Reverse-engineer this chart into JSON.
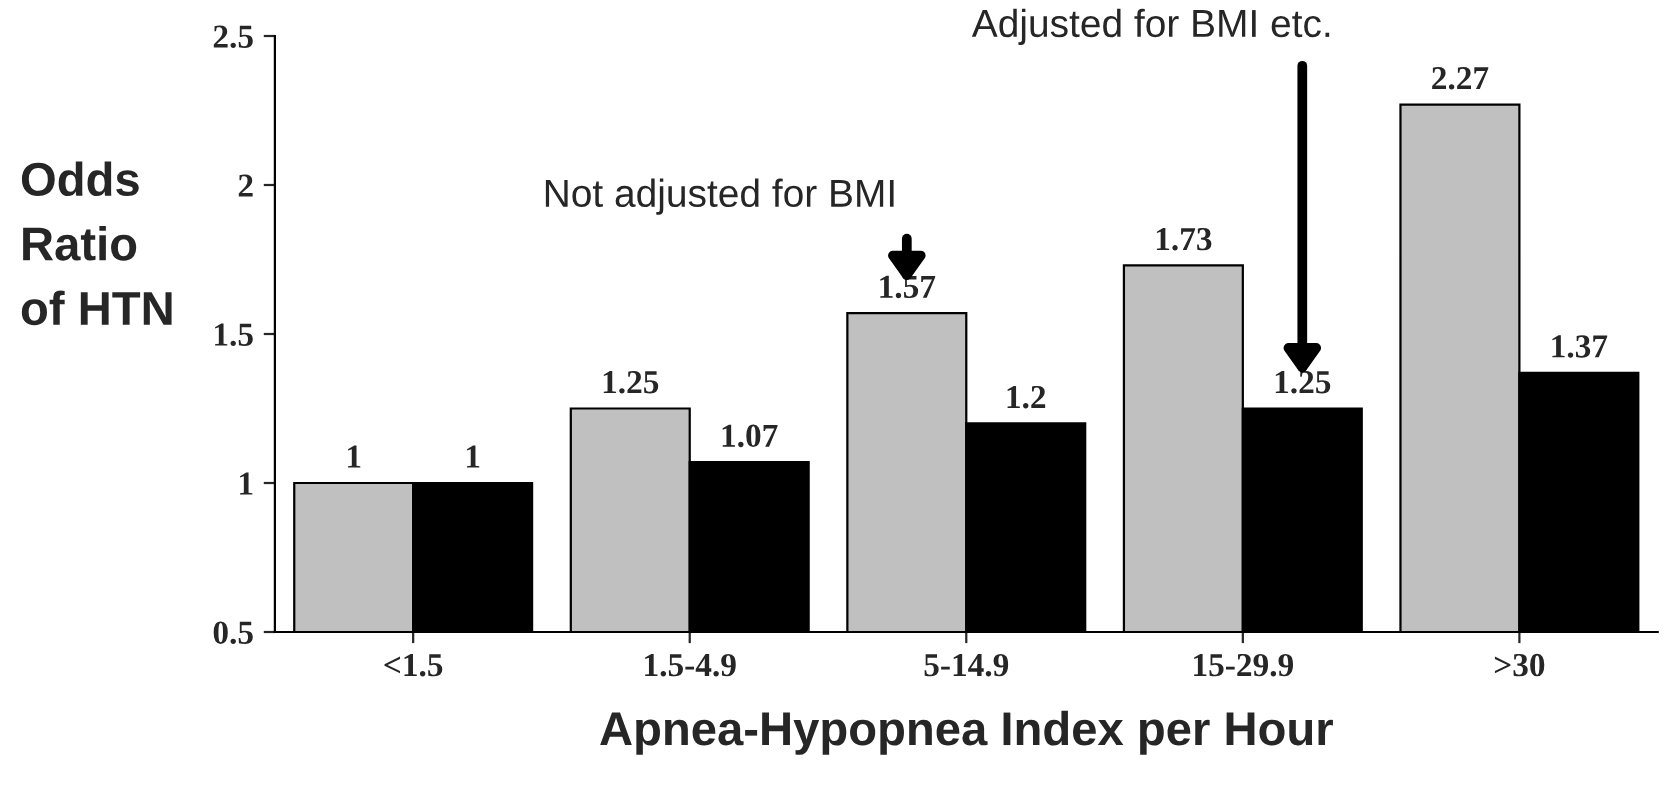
{
  "chart_data": {
    "type": "bar",
    "xlabel": "Apnea-Hypopnea Index per Hour",
    "ylabel": "Odds\nRatio\nof HTN",
    "categories": [
      "<1.5",
      "1.5-4.9",
      "5-14.9",
      "15-29.9",
      ">30"
    ],
    "series": [
      {
        "color": "#c0c0c0",
        "values": [
          1,
          1.25,
          1.57,
          1.73,
          2.27
        ]
      },
      {
        "color": "#000000",
        "values": [
          1,
          1.07,
          1.2,
          1.25,
          1.37
        ]
      }
    ],
    "ylim": [
      0.5,
      2.5
    ],
    "yticks": [
      0.5,
      1,
      1.5,
      2,
      2.5
    ],
    "grid": false,
    "legend": false,
    "data_labels": true,
    "annotations": [
      "Not adjusted for BMI",
      "Adjusted for BMI etc."
    ]
  }
}
